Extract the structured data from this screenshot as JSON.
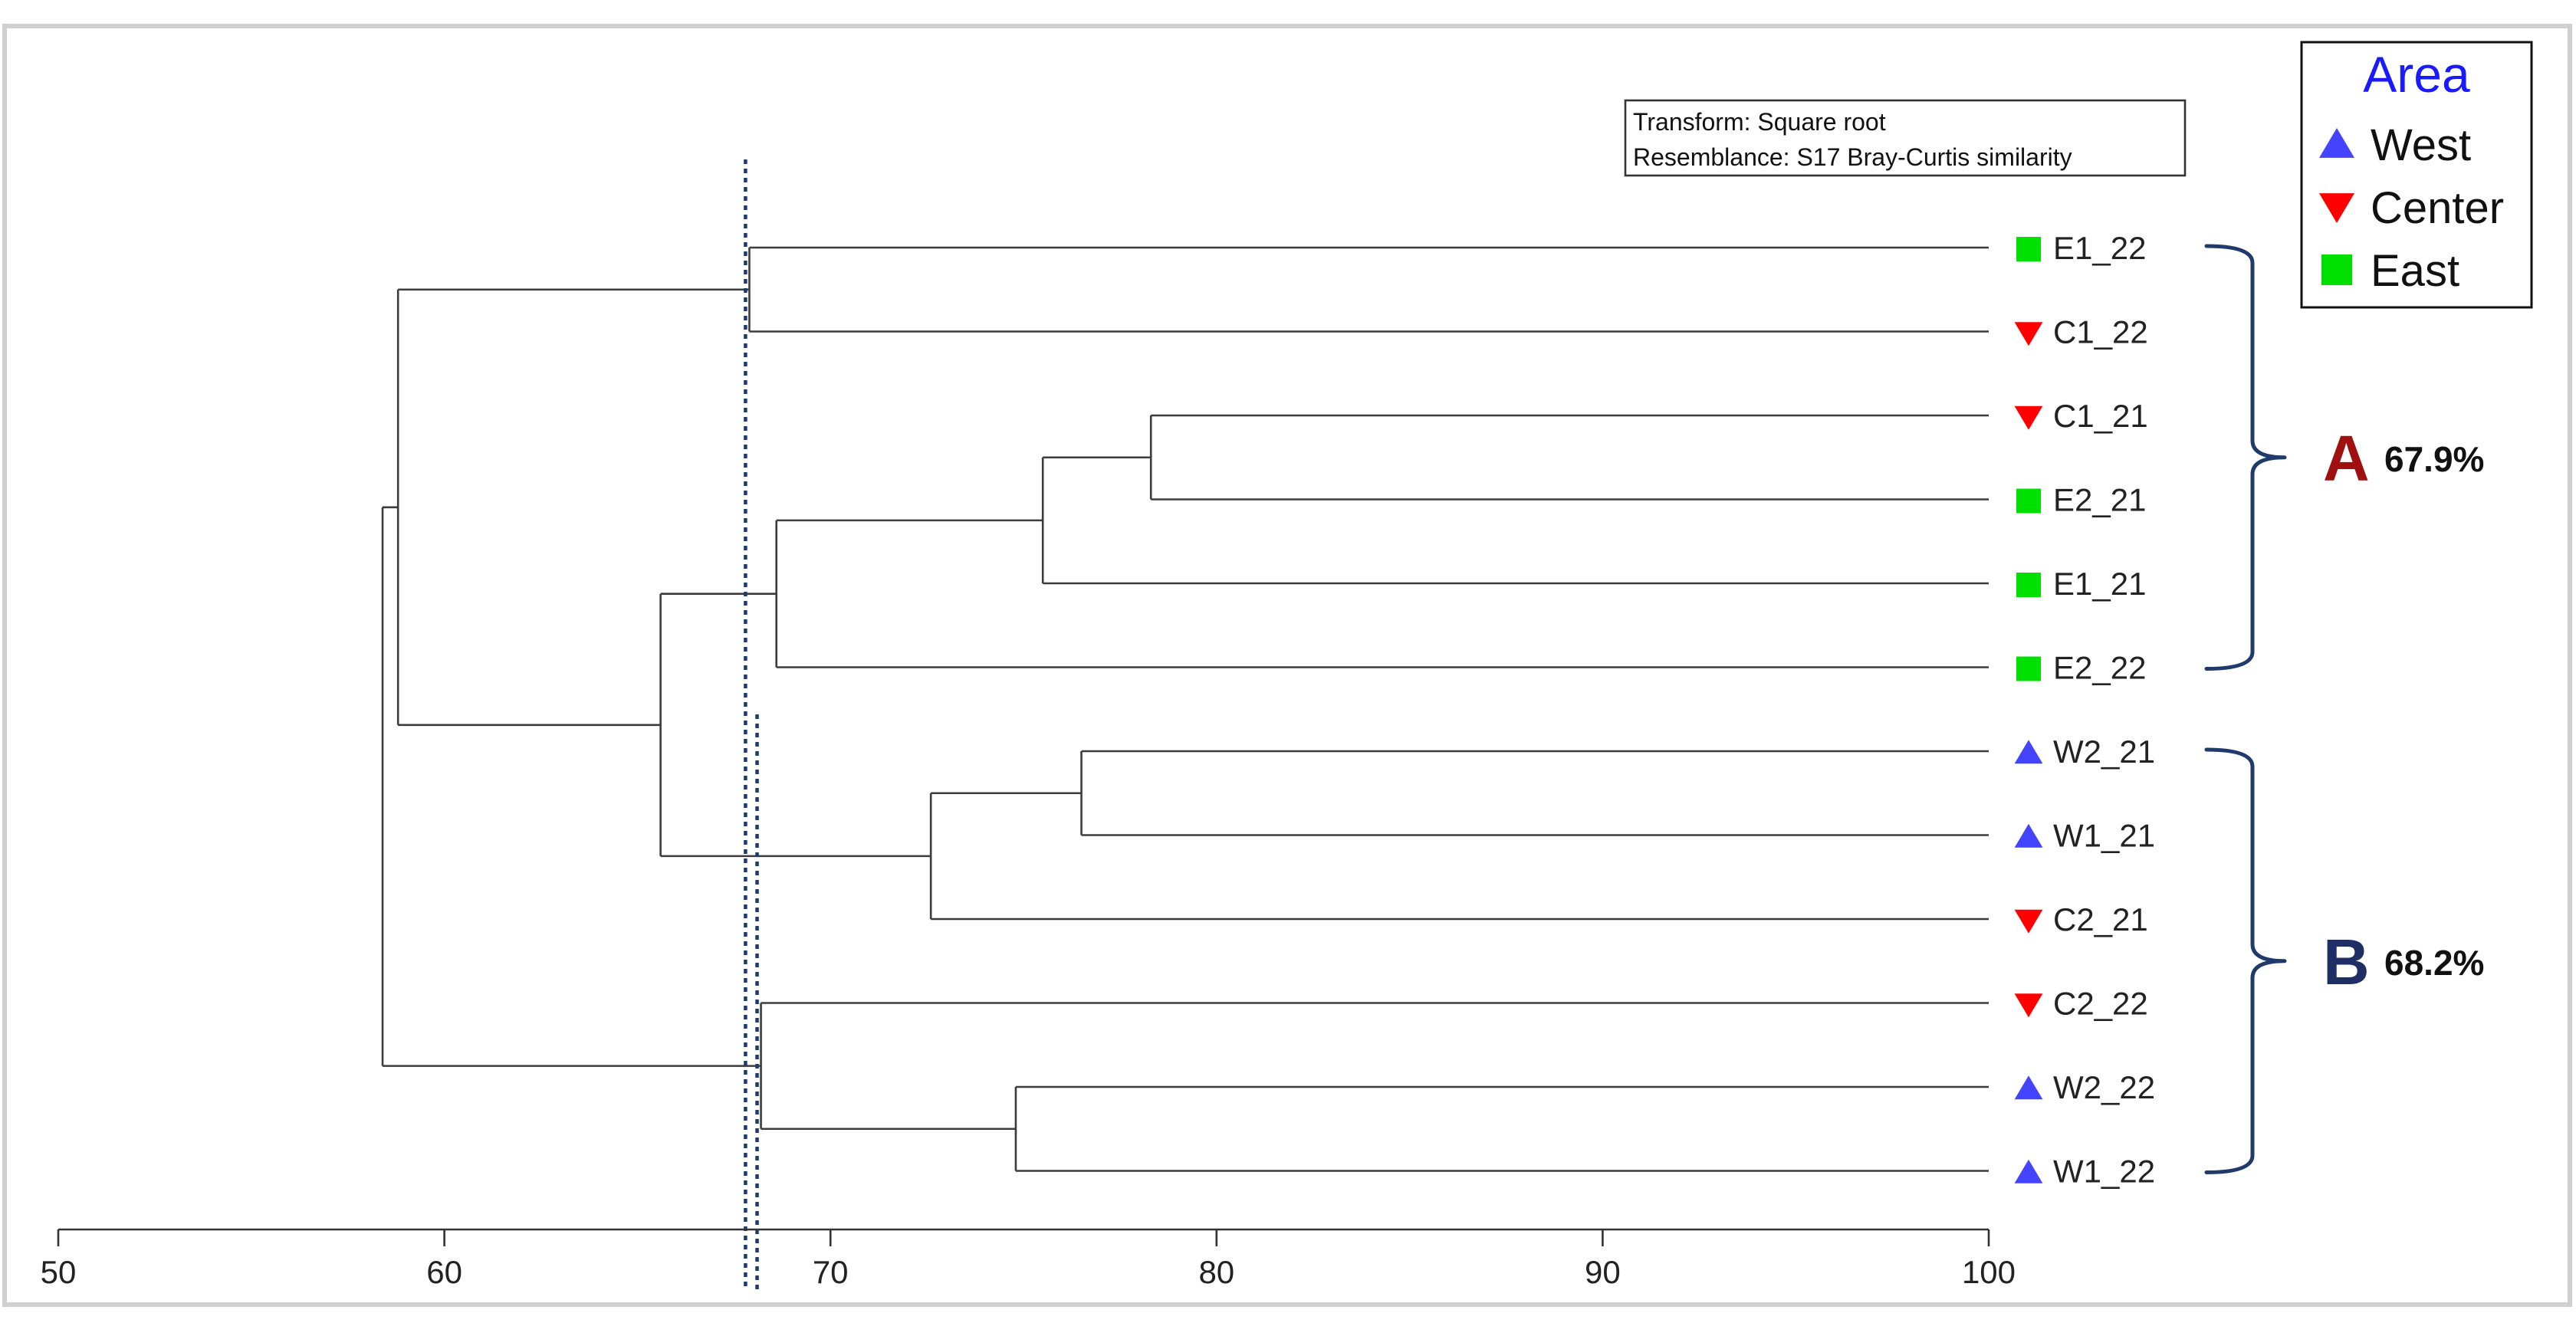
{
  "axis": {
    "min": 50,
    "max": 100,
    "ticks": [
      "50",
      "60",
      "70",
      "80",
      "90",
      "100"
    ]
  },
  "note": {
    "line1": "Transform: Square root",
    "line2": "Resemblance: S17 Bray-Curtis similarity"
  },
  "legend": {
    "title": "Area",
    "items": [
      {
        "label": "West",
        "marker": "triangle-up",
        "color": "#4444ff"
      },
      {
        "label": "Center",
        "marker": "triangle-down",
        "color": "#ff0000"
      },
      {
        "label": "East",
        "marker": "square",
        "color": "#00e000"
      }
    ]
  },
  "leaves": [
    {
      "label": "E1_22",
      "area": "East"
    },
    {
      "label": "C1_22",
      "area": "Center"
    },
    {
      "label": "C1_21",
      "area": "Center"
    },
    {
      "label": "E2_21",
      "area": "East"
    },
    {
      "label": "E1_21",
      "area": "East"
    },
    {
      "label": "E2_22",
      "area": "East"
    },
    {
      "label": "W2_21",
      "area": "West"
    },
    {
      "label": "W1_21",
      "area": "West"
    },
    {
      "label": "C2_21",
      "area": "Center"
    },
    {
      "label": "C2_22",
      "area": "Center"
    },
    {
      "label": "W2_22",
      "area": "West"
    },
    {
      "label": "W1_22",
      "area": "West"
    }
  ],
  "clusters": [
    {
      "id": "n1",
      "children": [
        "C1_21",
        "E2_21"
      ],
      "similarity": 78.3
    },
    {
      "id": "n2",
      "children": [
        "n1",
        "E1_21"
      ],
      "similarity": 75.5
    },
    {
      "id": "n3",
      "children": [
        "n2",
        "E2_22"
      ],
      "similarity": 68.6
    },
    {
      "id": "n4",
      "children": [
        "E1_22",
        "C1_22"
      ],
      "similarity": 67.9
    },
    {
      "id": "n5",
      "children": [
        "W2_21",
        "W1_21"
      ],
      "similarity": 76.5
    },
    {
      "id": "n6",
      "children": [
        "n5",
        "C2_21"
      ],
      "similarity": 72.6
    },
    {
      "id": "n7",
      "children": [
        "W2_22",
        "W1_22"
      ],
      "similarity": 74.8
    },
    {
      "id": "n8",
      "children": [
        "C2_22",
        "n7"
      ],
      "similarity": 68.2
    },
    {
      "id": "n9",
      "children": [
        "n3",
        "n6"
      ],
      "similarity": 65.6
    },
    {
      "id": "n10",
      "children": [
        "n4",
        "n9"
      ],
      "similarity": 58.8
    },
    {
      "id": "n11",
      "children": [
        "n10",
        "n8"
      ],
      "similarity": 58.4
    }
  ],
  "cut_lines": [
    67.8,
    68.1
  ],
  "groups": [
    {
      "letter": "A",
      "percent": "67.9%",
      "color": "#a01010",
      "leaves": [
        "E1_22",
        "E2_22"
      ]
    },
    {
      "letter": "B",
      "percent": "68.2%",
      "color": "#1f2f66",
      "leaves": [
        "W2_21",
        "W1_22"
      ]
    }
  ]
}
